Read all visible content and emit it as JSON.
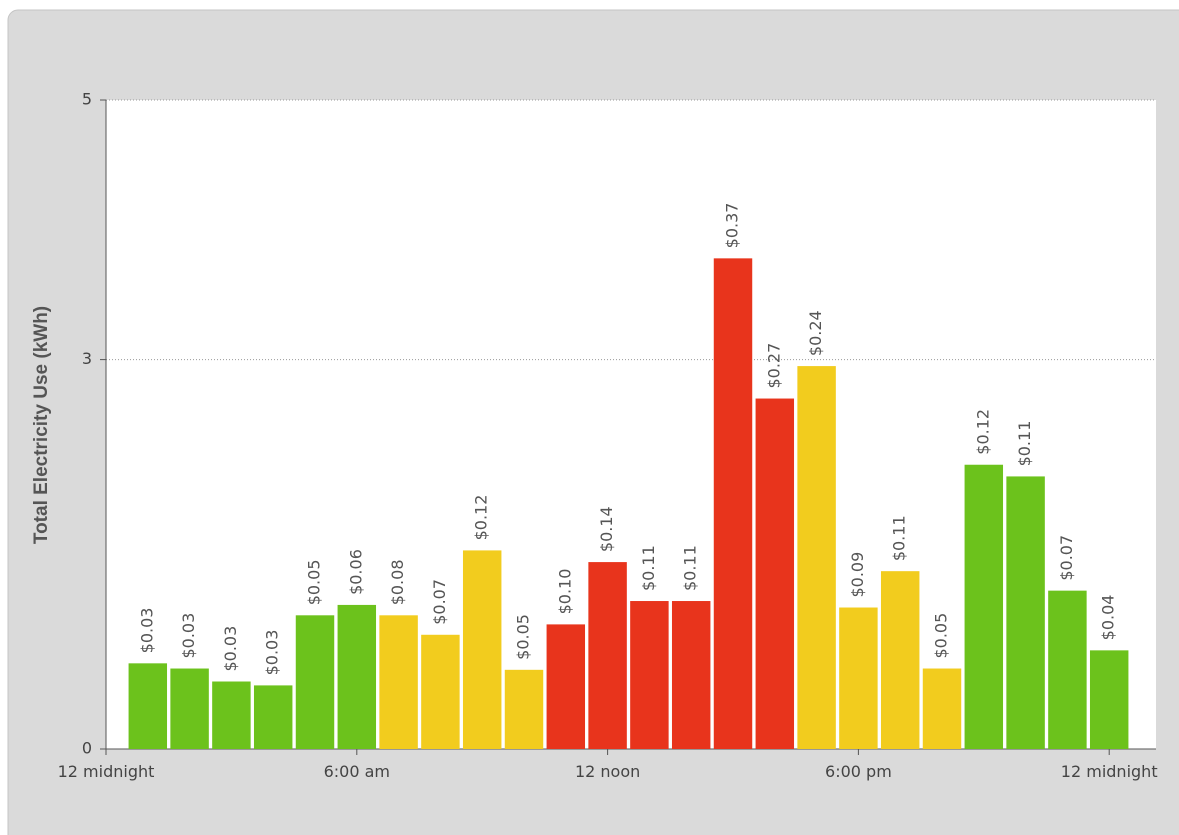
{
  "chart_data": {
    "type": "bar",
    "y_label": "Total Electricity Use (kWh)",
    "x": [
      1,
      2,
      3,
      4,
      5,
      6,
      7,
      8,
      9,
      10,
      11,
      12,
      13,
      14,
      15,
      16,
      17,
      18,
      19,
      20,
      21,
      22,
      23,
      24
    ],
    "values": [
      0.66,
      0.62,
      0.52,
      0.49,
      1.03,
      1.11,
      1.03,
      0.88,
      1.53,
      0.61,
      0.96,
      1.44,
      1.14,
      1.14,
      3.78,
      2.7,
      2.95,
      1.09,
      1.37,
      0.62,
      2.19,
      2.1,
      1.22,
      0.76
    ],
    "colors": [
      "#6cc21c",
      "#6cc21c",
      "#6cc21c",
      "#6cc21c",
      "#6cc21c",
      "#6cc21c",
      "#f2cc1e",
      "#f2cc1e",
      "#f2cc1e",
      "#f2cc1e",
      "#e8341c",
      "#e8341c",
      "#e8341c",
      "#e8341c",
      "#e8341c",
      "#e8341c",
      "#f2cc1e",
      "#f2cc1e",
      "#f2cc1e",
      "#f2cc1e",
      "#6cc21c",
      "#6cc21c",
      "#6cc21c",
      "#6cc21c"
    ],
    "cost_labels": [
      "$0.03",
      "$0.03",
      "$0.03",
      "$0.03",
      "$0.05",
      "$0.06",
      "$0.08",
      "$0.07",
      "$0.12",
      "$0.05",
      "$0.10",
      "$0.14",
      "$0.11",
      "$0.11",
      "$0.37",
      "$0.27",
      "$0.24",
      "$0.09",
      "$0.11",
      "$0.05",
      "$0.12",
      "$0.11",
      "$0.07",
      "$0.04"
    ],
    "xlim": [
      0,
      25
    ],
    "xticks": [
      {
        "value": 0,
        "label": "12 midnight"
      },
      {
        "value": 6,
        "label": "6:00 am"
      },
      {
        "value": 12,
        "label": "12 noon"
      },
      {
        "value": 18,
        "label": "6:00 pm"
      },
      {
        "value": 24,
        "label": "12 midnight"
      }
    ],
    "ylim": [
      0,
      5
    ],
    "yticks": [
      0,
      3,
      5
    ],
    "grid": true
  }
}
